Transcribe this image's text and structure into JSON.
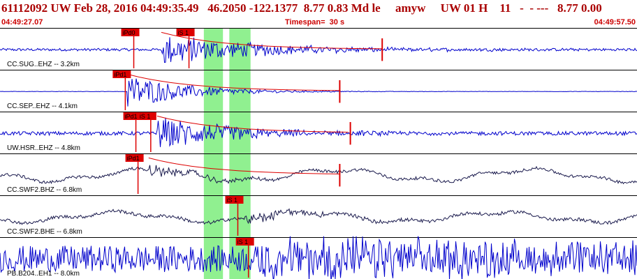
{
  "header": {
    "title": "61112092 UW Feb 28, 2016 04:49:35.49   46.2050 -122.1377  8.77 0.83 Md le     amyw     UW 01 H    11   -  - ---   8.77 0.00",
    "start_time": "04:49:27.07",
    "timespan": "Timespan=  30 s",
    "end_time": "04:49:57.50"
  },
  "colors": {
    "trace_blue": "#0000cc",
    "trace_dark": "#1a1a4d",
    "pick_red": "#dd0000",
    "window_green": "#90f090",
    "divider": "#000000"
  },
  "chart_data": {
    "type": "line",
    "xlim": [
      0,
      30
    ],
    "traces": [
      {
        "label": "CC.SUG..EHZ -- 3.2km",
        "color": "trace_blue",
        "onset_s": 7.6,
        "peak_amp": 0.85,
        "noise": 0.07,
        "decay_s": 10,
        "coda_end_s": 18,
        "lp_amp": 0,
        "picks": [
          {
            "label": "iPd0",
            "t": 6.3
          },
          {
            "label": "iS 1",
            "t": 8.9
          }
        ]
      },
      {
        "label": "CC.SEP..EHZ -- 4.1km",
        "color": "trace_blue",
        "onset_s": 6.0,
        "peak_amp": 0.95,
        "noise": 0.01,
        "decay_s": 6,
        "coda_end_s": 16,
        "lp_amp": 0,
        "picks": [
          {
            "label": "iPd1",
            "t": 5.9
          }
        ]
      },
      {
        "label": "UW.HSR..EHZ -- 4.8km",
        "color": "trace_blue",
        "onset_s": 7.4,
        "peak_amp": 0.9,
        "noise": 0.1,
        "decay_s": 8,
        "coda_end_s": 16.5,
        "lp_amp": 0,
        "picks": [
          {
            "label": "iPd1",
            "t": 6.4
          },
          {
            "label": "iS 1",
            "t": 7.1
          }
        ]
      },
      {
        "label": "CC.SWF2.BHZ -- 6.8km",
        "color": "trace_dark",
        "onset_s": 7.0,
        "peak_amp": 0.35,
        "noise": 0.08,
        "decay_s": 5,
        "coda_end_s": 16,
        "lp_amp": 0.35,
        "picks": [
          {
            "label": "iPd1",
            "t": 6.5
          }
        ]
      },
      {
        "label": "CC.SWF2.BHE -- 6.8km",
        "color": "trace_dark",
        "onset_s": 11.5,
        "peak_amp": 0.3,
        "noise": 0.09,
        "decay_s": 7,
        "coda_end_s": 0,
        "lp_amp": 0.3,
        "picks": [
          {
            "label": "iS 1",
            "t": 11.2
          }
        ]
      },
      {
        "label": "PB.B204..EH1 -- 8.0km",
        "color": "trace_blue",
        "onset_s": 12.2,
        "peak_amp": 0.95,
        "noise": 0.7,
        "decay_s": 40,
        "coda_end_s": 0,
        "lp_amp": 0,
        "picks": [
          {
            "label": "iS 1",
            "t": 11.7
          }
        ]
      }
    ],
    "windows": [
      {
        "start_s": 9.6,
        "end_s": 10.5
      },
      {
        "start_s": 10.8,
        "end_s": 11.8
      }
    ]
  }
}
